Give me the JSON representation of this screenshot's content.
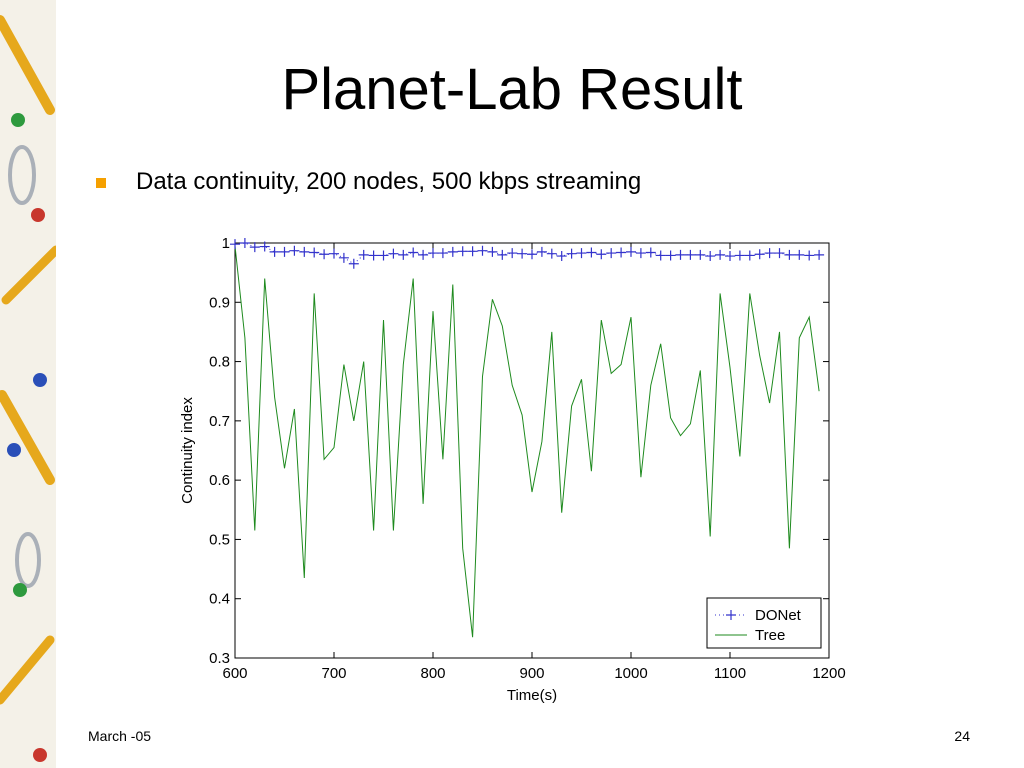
{
  "slide": {
    "title": "Planet-Lab Result",
    "bullet": "Data continuity, 200 nodes,  500 kbps streaming",
    "footer_date": "March -05",
    "page_number": "24"
  },
  "colors": {
    "bullet": "#f5a000",
    "donet": "#3333cc",
    "tree": "#1e8a1e"
  },
  "chart_data": {
    "type": "line",
    "xlabel": "Time(s)",
    "ylabel": "Continuity index",
    "xlim": [
      600,
      1200
    ],
    "ylim": [
      0.3,
      1
    ],
    "x_ticks": [
      "600",
      "700",
      "800",
      "900",
      "1000",
      "1100",
      "1200"
    ],
    "y_ticks": [
      "0.3",
      "0.4",
      "0.5",
      "0.6",
      "0.7",
      "0.8",
      "0.9",
      "1"
    ],
    "grid": false,
    "legend_position": "bottom-right",
    "x": [
      600,
      610,
      620,
      630,
      640,
      650,
      660,
      670,
      680,
      690,
      700,
      710,
      720,
      730,
      740,
      750,
      760,
      770,
      780,
      790,
      800,
      810,
      820,
      830,
      840,
      850,
      860,
      870,
      880,
      890,
      900,
      910,
      920,
      930,
      940,
      950,
      960,
      970,
      980,
      990,
      1000,
      1010,
      1020,
      1030,
      1040,
      1050,
      1060,
      1070,
      1080,
      1090,
      1100,
      1110,
      1120,
      1130,
      1140,
      1150,
      1160,
      1170,
      1180,
      1190
    ],
    "series": [
      {
        "name": "DONet",
        "marker": "+",
        "values": [
          0.998,
          1.0,
          0.993,
          0.994,
          0.985,
          0.985,
          0.987,
          0.985,
          0.984,
          0.981,
          0.982,
          0.975,
          0.965,
          0.98,
          0.979,
          0.979,
          0.982,
          0.98,
          0.984,
          0.98,
          0.983,
          0.983,
          0.985,
          0.986,
          0.986,
          0.987,
          0.985,
          0.98,
          0.983,
          0.982,
          0.981,
          0.985,
          0.982,
          0.978,
          0.982,
          0.983,
          0.984,
          0.981,
          0.983,
          0.984,
          0.985,
          0.983,
          0.984,
          0.979,
          0.979,
          0.98,
          0.98,
          0.98,
          0.978,
          0.98,
          0.978,
          0.979,
          0.979,
          0.981,
          0.983,
          0.983,
          0.98,
          0.98,
          0.979,
          0.98
        ]
      },
      {
        "name": "Tree",
        "values": [
          0.995,
          0.84,
          0.515,
          0.94,
          0.74,
          0.62,
          0.72,
          0.435,
          0.915,
          0.635,
          0.655,
          0.795,
          0.7,
          0.8,
          0.515,
          0.87,
          0.515,
          0.795,
          0.94,
          0.56,
          0.885,
          0.635,
          0.93,
          0.485,
          0.335,
          0.775,
          0.905,
          0.86,
          0.76,
          0.71,
          0.58,
          0.665,
          0.85,
          0.545,
          0.725,
          0.77,
          0.615,
          0.87,
          0.78,
          0.795,
          0.875,
          0.605,
          0.76,
          0.83,
          0.705,
          0.675,
          0.695,
          0.785,
          0.505,
          0.915,
          0.79,
          0.64,
          0.915,
          0.81,
          0.73,
          0.85,
          0.485,
          0.84,
          0.875,
          0.75
        ]
      }
    ]
  }
}
